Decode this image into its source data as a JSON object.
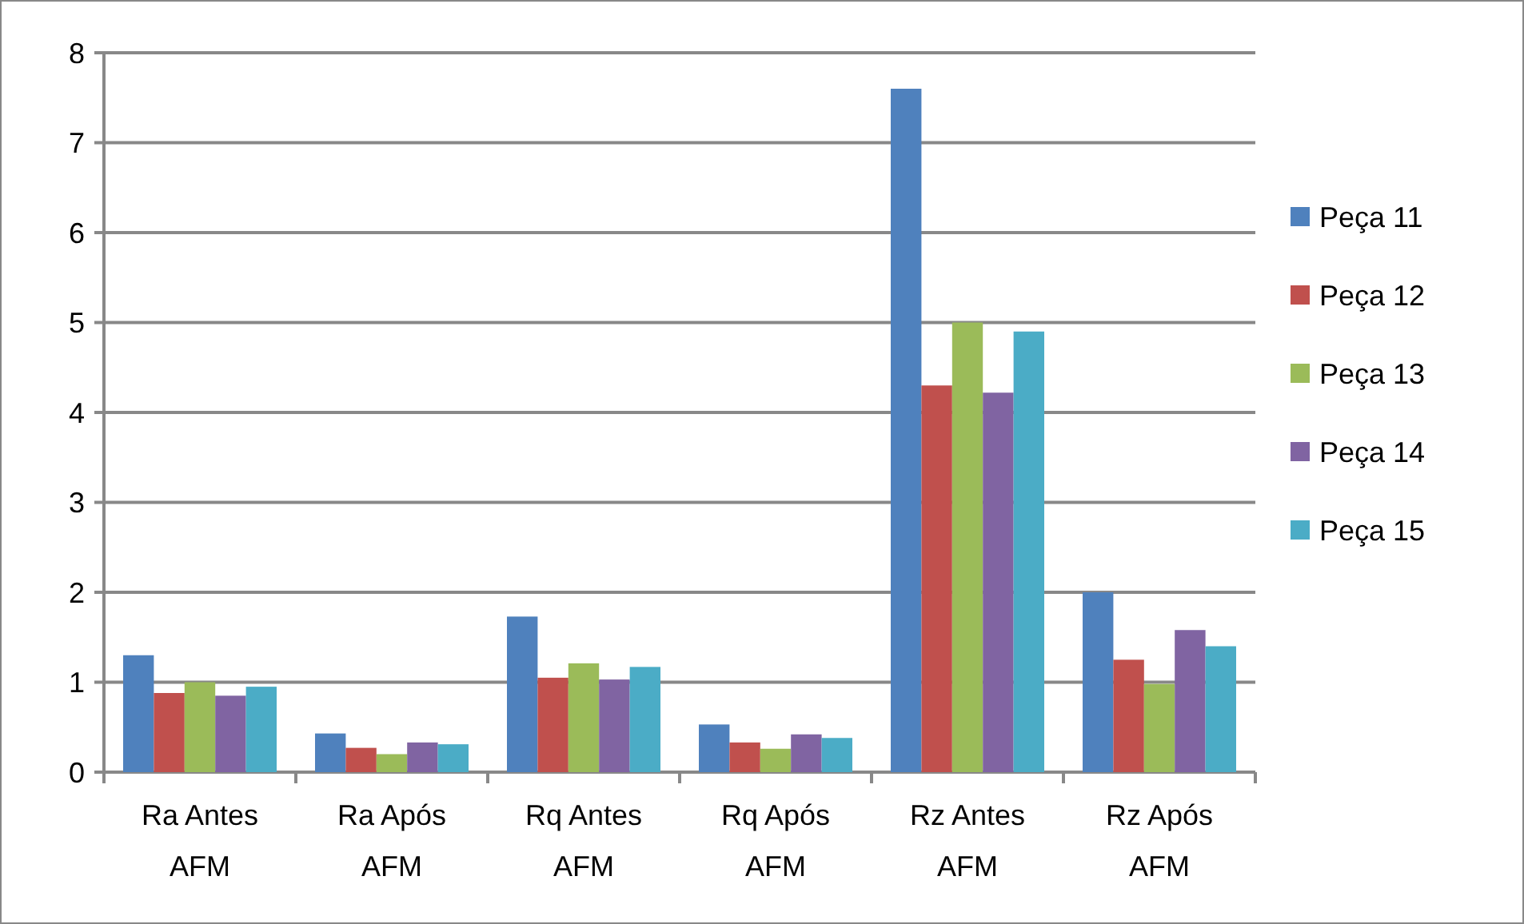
{
  "chart_data": {
    "type": "bar",
    "categories": [
      "Ra Antes AFM",
      "Ra Após AFM",
      "Rq Antes AFM",
      "Rq Após AFM",
      "Rz Antes AFM",
      "Rz Após AFM"
    ],
    "series": [
      {
        "name": "Peça 11",
        "color": "#4f81bd",
        "values": [
          1.3,
          0.43,
          1.73,
          0.53,
          7.6,
          2.0
        ]
      },
      {
        "name": "Peça 12",
        "color": "#c0504d",
        "values": [
          0.88,
          0.27,
          1.05,
          0.33,
          4.3,
          1.25
        ]
      },
      {
        "name": "Peça 13",
        "color": "#9bbb59",
        "values": [
          1.0,
          0.2,
          1.21,
          0.26,
          5.0,
          0.98
        ]
      },
      {
        "name": "Peça 14",
        "color": "#8064a2",
        "values": [
          0.85,
          0.33,
          1.03,
          0.42,
          4.22,
          1.58
        ]
      },
      {
        "name": "Peça 15",
        "color": "#4bacc6",
        "values": [
          0.95,
          0.31,
          1.17,
          0.38,
          4.9,
          1.4
        ]
      }
    ],
    "ylim": [
      0,
      8
    ],
    "yticks": [
      0,
      1,
      2,
      3,
      4,
      5,
      6,
      7,
      8
    ],
    "grid": "y",
    "legend": "right"
  }
}
